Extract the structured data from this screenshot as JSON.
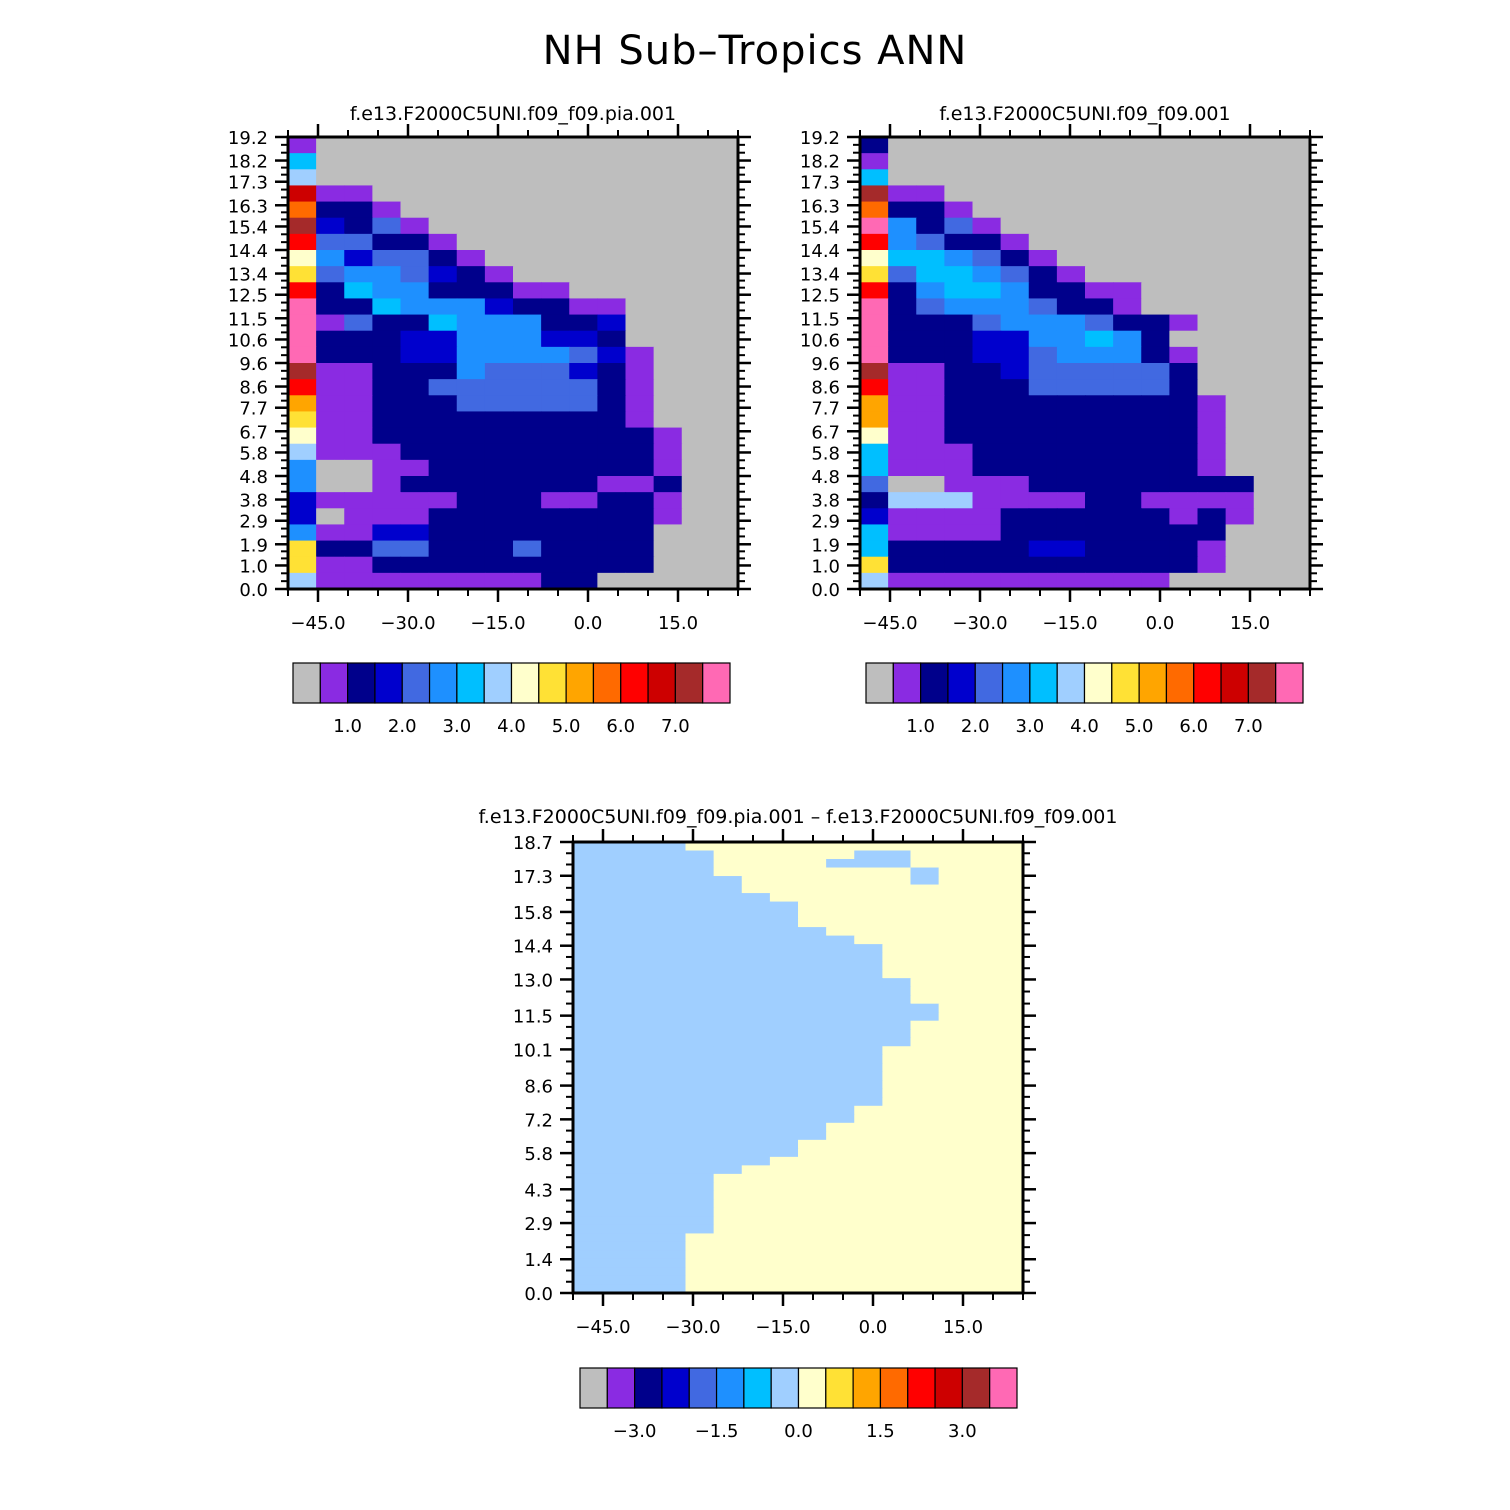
{
  "figure_title": "NH Sub–Tropics ANN",
  "colors": {
    "palette": [
      "#bebebe",
      "#8a2be2",
      "#00008b",
      "#0000cd",
      "#4169e1",
      "#1e90ff",
      "#00bfff",
      "#a0cfff",
      "#ffffcc",
      "#ffe135",
      "#ffa500",
      "#ff6a00",
      "#ff0000",
      "#cd0000",
      "#a52a2a",
      "#ff69b4"
    ],
    "frame": "#000000"
  },
  "chart_data": [
    {
      "type": "heatmap",
      "title": "f.e13.F2000C5UNI.f09_f09.pia.001",
      "xlabel": "",
      "ylabel": "",
      "x_ticks": [
        "−45.0",
        "−30.0",
        "−15.0",
        "0.0",
        "15.0"
      ],
      "y_ticks": [
        "0.0",
        "1.0",
        "1.9",
        "2.9",
        "3.8",
        "4.8",
        "5.8",
        "6.7",
        "7.7",
        "8.6",
        "9.6",
        "10.6",
        "11.5",
        "12.5",
        "13.4",
        "14.4",
        "15.4",
        "16.3",
        "17.3",
        "18.2",
        "19.2"
      ],
      "x_range": [
        -50,
        25
      ],
      "y_range": [
        0,
        19.2
      ],
      "colorbar_labels": [
        "1.0",
        "2.0",
        "3.0",
        "4.0",
        "5.0",
        "6.0",
        "7.0"
      ],
      "row_order": "top-to-bottom",
      "legend_note": "cells use palette index 0-15",
      "grid": [
        "1000000000000000",
        "6000000000000000",
        "7000000000000000",
        "D110000000000000",
        "B221000000000000",
        "E324100000000000",
        "C442210000000000",
        "8534421000000000",
        "9455432100000000",
        "C265522211000000",
        "F226555322110000",
        "F142265552230000",
        "F222335553320000",
        "F222335555431000",
        "E112225444321000",
        "C112244444421000",
        "A112224444421000",
        "9112222222221000",
        "8112222222222100",
        "7111222222222100",
        "5001122222222100",
        "5001222222211200",
        "3111112221122100",
        "3011122222222100",
        "5113322222222000",
        "9224422242222000",
        "9112222222222000",
        "7111111112200000"
      ]
    },
    {
      "type": "heatmap",
      "title": "f.e13.F2000C5UNI.f09_f09.001",
      "xlabel": "",
      "ylabel": "",
      "x_ticks": [
        "−45.0",
        "−30.0",
        "−15.0",
        "0.0",
        "15.0"
      ],
      "y_ticks": [
        "0.0",
        "1.0",
        "1.9",
        "2.9",
        "3.8",
        "4.8",
        "5.8",
        "6.7",
        "7.7",
        "8.6",
        "9.6",
        "10.6",
        "11.5",
        "12.5",
        "13.4",
        "14.4",
        "15.4",
        "16.3",
        "17.3",
        "18.2",
        "19.2"
      ],
      "x_range": [
        -50,
        25
      ],
      "y_range": [
        0,
        19.2
      ],
      "colorbar_labels": [
        "1.0",
        "2.0",
        "3.0",
        "4.0",
        "5.0",
        "6.0",
        "7.0"
      ],
      "row_order": "top-to-bottom",
      "legend_note": "cells use palette index 0-15",
      "grid": [
        "2000000000000000",
        "1000000000000000",
        "6000000000000000",
        "E110000000000000",
        "B221000000000000",
        "F524100000000000",
        "C542210000000000",
        "8665421000000000",
        "9466542100000000",
        "C256652211000000",
        "F245554221000000",
        "F222455542210000",
        "F222335565200000",
        "F222334555210000",
        "E112234444420000",
        "C112224444420000",
        "A112222222221000",
        "A112222222221000",
        "8112222222221000",
        "6111222222221000",
        "6111222222221000",
        "4001112222222200",
        "2777111122111100",
        "3111122222212100",
        "6111122222222000",
        "6222223322221000",
        "9222222222221000",
        "7111111111100000"
      ]
    },
    {
      "type": "heatmap",
      "title": "f.e13.F2000C5UNI.f09_f09.pia.001 – f.e13.F2000C5UNI.f09_f09.001",
      "xlabel": "",
      "ylabel": "",
      "x_ticks": [
        "−45.0",
        "−30.0",
        "−15.0",
        "0.0",
        "15.0"
      ],
      "y_ticks": [
        "0.0",
        "1.4",
        "2.9",
        "4.3",
        "5.8",
        "7.2",
        "8.6",
        "10.1",
        "11.5",
        "13.0",
        "14.4",
        "15.8",
        "17.3",
        "18.7"
      ],
      "x_range": [
        -50,
        25
      ],
      "y_range": [
        0,
        19.2
      ],
      "colorbar_labels": [
        "−3.0",
        "−1.5",
        "0.0",
        "1.5",
        "3.0"
      ],
      "row_order": "top-to-bottom",
      "legend_note": "cells use palette index 0-15",
      "grid": [
        "7777888888888888",
        "7777788888778888",
        "7777788887778888",
        "7777788888887888",
        "7777778888887888",
        "7777778888888888",
        "7777777888888888",
        "7777777788888888",
        "7777777788888888",
        "7777777788888888",
        "7777777778888888",
        "7777777777888888",
        "7777777777788888",
        "7777777777788888",
        "7777777777788888",
        "7777777777788888",
        "7777777777778888",
        "7777777777778888",
        "7777777777778888",
        "7777777777777888",
        "7777777777777888",
        "7777777777778888",
        "7777777777778888",
        "7777777777778888",
        "7777777777788888",
        "7777777777788888",
        "7777777777788888",
        "7777777777788888",
        "7777777777788888",
        "7777777777788888",
        "7777777777788888",
        "7777777777888888",
        "7777777777888888",
        "7777777778888888",
        "7777777778888888",
        "7777777788888888",
        "7777777788888888",
        "7777777888888888",
        "7777778888888888",
        "7777788888888888",
        "7777788888888888",
        "7777788888888888",
        "7777788888888888",
        "7777788888888888",
        "7777788888888888",
        "7777788888888888",
        "7777888888888888",
        "7777888888888888",
        "7777888888888888",
        "7777888888888888",
        "7777888888888888",
        "7777888888888888",
        "7777888888888888"
      ]
    }
  ]
}
